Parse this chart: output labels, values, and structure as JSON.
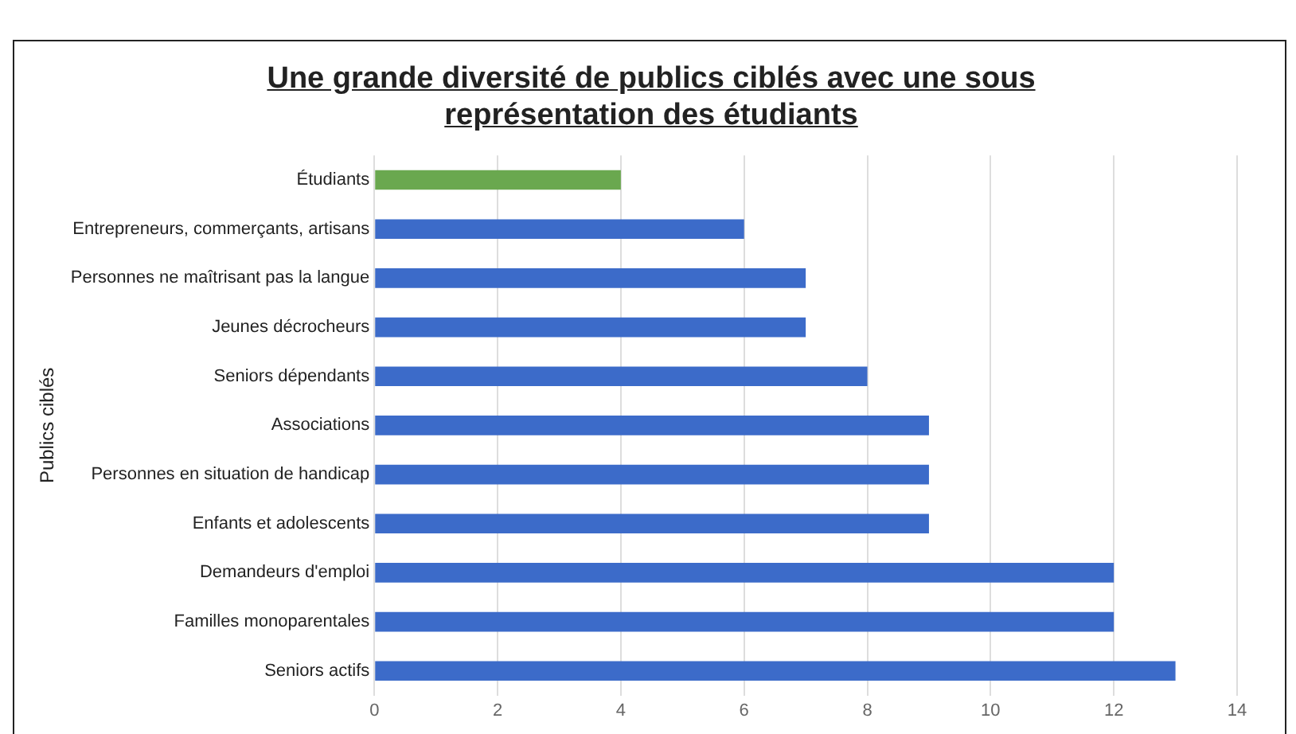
{
  "chart_data": {
    "type": "bar",
    "orientation": "horizontal",
    "title": "Une grande diversité de publics ciblés avec une sous représentation des étudiants",
    "ylabel": "Publics ciblés",
    "categories": [
      "Étudiants",
      "Entrepreneurs, commerçants, artisans",
      "Personnes ne maîtrisant pas la langue",
      "Jeunes décrocheurs",
      "Seniors dépendants",
      "Associations",
      "Personnes en situation de handicap",
      "Enfants et adolescents",
      "Demandeurs d'emploi",
      "Familles monoparentales",
      "Seniors actifs"
    ],
    "values": [
      4,
      6,
      7,
      7,
      8,
      9,
      9,
      9,
      12,
      12,
      13
    ],
    "colors": [
      "#6aa84f",
      "#3c6bc9",
      "#3c6bc9",
      "#3c6bc9",
      "#3c6bc9",
      "#3c6bc9",
      "#3c6bc9",
      "#3c6bc9",
      "#3c6bc9",
      "#3c6bc9",
      "#3c6bc9"
    ],
    "xlim": [
      0,
      14
    ],
    "xticks": [
      0,
      2,
      4,
      6,
      8,
      10,
      12,
      14
    ],
    "grid": "x",
    "legend": false
  }
}
